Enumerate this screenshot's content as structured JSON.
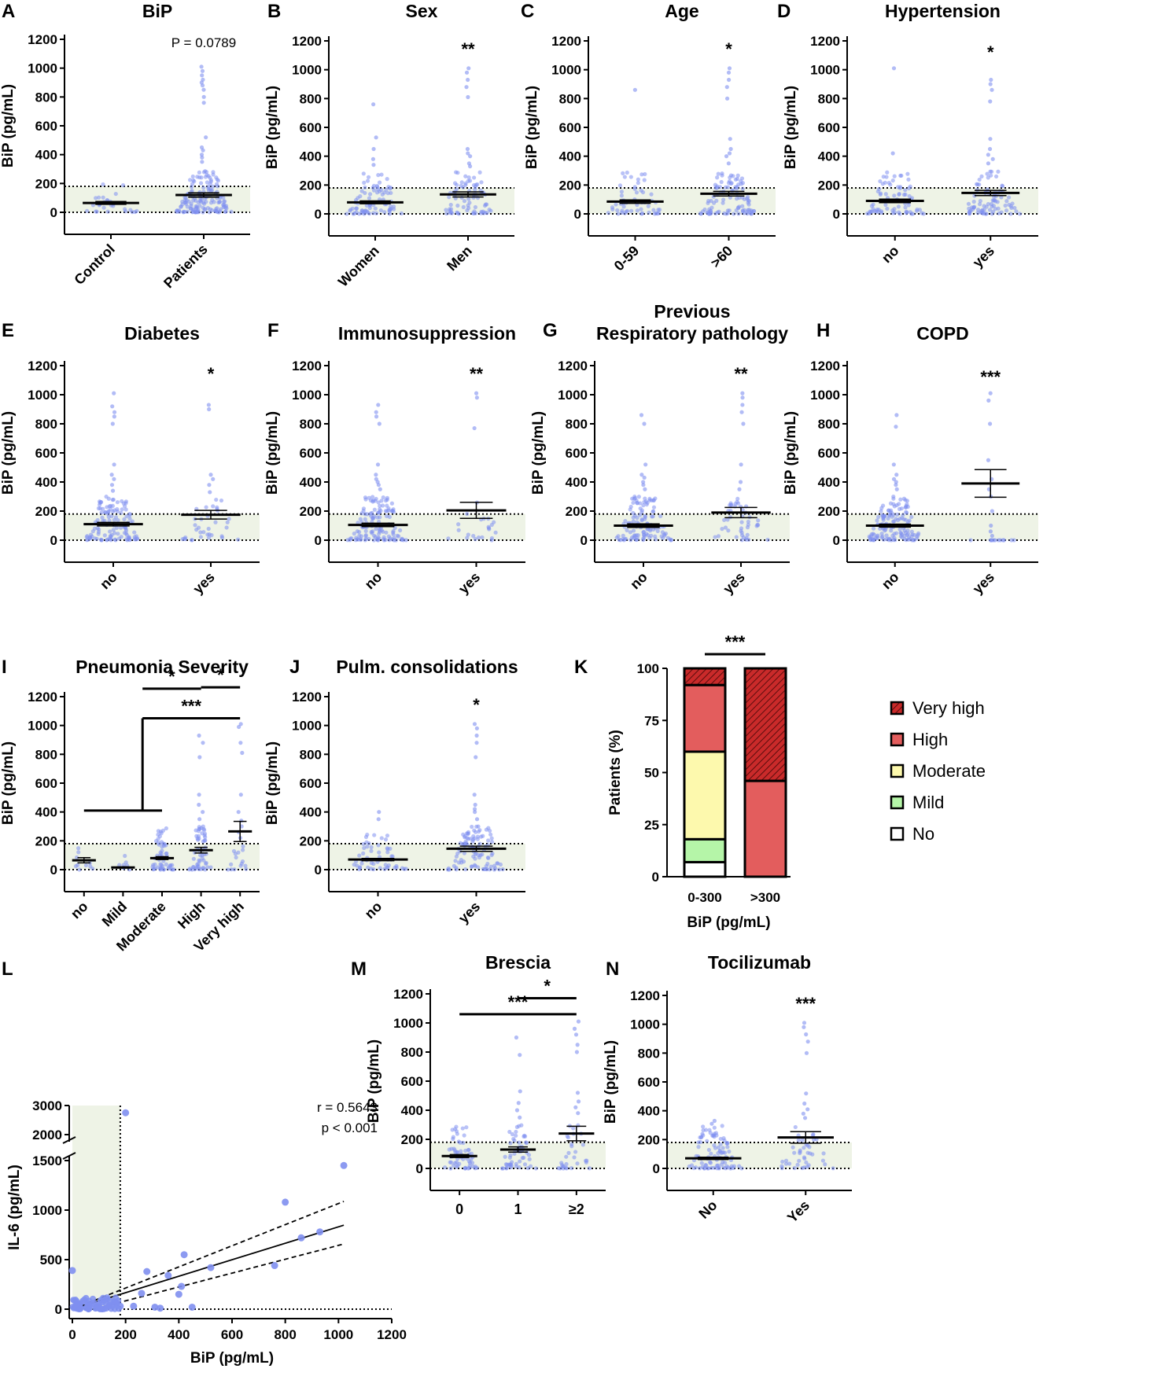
{
  "figure": {
    "background": "#ffffff"
  },
  "colors": {
    "point": "#7f8ff0",
    "band": "#eef3e6",
    "axis": "#000000",
    "very_high": "#c92a2a",
    "high": "#e35d5d",
    "moderate": "#fdf9ad",
    "mild": "#b5f5a8",
    "no": "#ffffff"
  },
  "chart_data": [
    {
      "id": "A",
      "letter": "A",
      "type": "scatter",
      "title": "BiP",
      "ylabel": "BiP (pg/mL)",
      "ylim": [
        0,
        1200
      ],
      "yticks": [
        0,
        200,
        400,
        600,
        800,
        1000,
        1200
      ],
      "normal_range": [
        0,
        180
      ],
      "categories": [
        "Control",
        "Patients"
      ],
      "rotate": true,
      "annotation": "P = 0.0789",
      "annotation_category": 1,
      "series": [
        {
          "name": "Control",
          "mean": 65,
          "sem": 10,
          "n": 28,
          "max": 210,
          "outliers": []
        },
        {
          "name": "Patients",
          "mean": 120,
          "sem": 15,
          "n": 150,
          "max": 300,
          "outliers": [
            1010,
            980,
            950,
            920,
            900,
            880,
            850,
            800,
            760,
            520,
            450,
            430,
            400,
            380,
            350
          ]
        }
      ]
    },
    {
      "id": "B",
      "letter": "B",
      "type": "scatter",
      "title": "Sex",
      "ylabel": "BiP (pg/mL)",
      "ylim": [
        0,
        1200
      ],
      "yticks": [
        0,
        200,
        400,
        600,
        800,
        1000,
        1200
      ],
      "normal_range": [
        0,
        180
      ],
      "categories": [
        "Women",
        "Men"
      ],
      "rotate": true,
      "star": "**",
      "series": [
        {
          "name": "Women",
          "mean": 80,
          "sem": 10,
          "n": 85,
          "max": 280,
          "outliers": [
            760,
            530,
            450,
            380,
            340
          ]
        },
        {
          "name": "Men",
          "mean": 135,
          "sem": 18,
          "n": 75,
          "max": 300,
          "outliers": [
            1010,
            980,
            930,
            880,
            810,
            450,
            420,
            400,
            350,
            330
          ]
        }
      ]
    },
    {
      "id": "C",
      "letter": "C",
      "type": "scatter",
      "title": "Age",
      "ylabel": "BiP (pg/mL)",
      "ylim": [
        0,
        1200
      ],
      "yticks": [
        0,
        200,
        400,
        600,
        800,
        1000,
        1200
      ],
      "normal_range": [
        0,
        180
      ],
      "categories": [
        "0-59",
        ">60"
      ],
      "rotate": true,
      "star": "*",
      "series": [
        {
          "name": "0-59",
          "mean": 85,
          "sem": 12,
          "n": 55,
          "max": 300,
          "outliers": [
            860
          ]
        },
        {
          "name": ">60",
          "mean": 140,
          "sem": 16,
          "n": 100,
          "max": 300,
          "outliers": [
            1010,
            980,
            930,
            880,
            800,
            520,
            450,
            420,
            400,
            350
          ]
        }
      ]
    },
    {
      "id": "D",
      "letter": "D",
      "type": "scatter",
      "title": "Hypertension",
      "ylabel": "BiP (pg/mL)",
      "ylim": [
        0,
        1200
      ],
      "yticks": [
        0,
        200,
        400,
        600,
        800,
        1000,
        1200
      ],
      "normal_range": [
        0,
        180
      ],
      "categories": [
        "no",
        "yes"
      ],
      "rotate": true,
      "star": "*",
      "series": [
        {
          "name": "no",
          "mean": 90,
          "sem": 12,
          "n": 75,
          "max": 300,
          "outliers": [
            1010,
            420
          ]
        },
        {
          "name": "yes",
          "mean": 145,
          "sem": 18,
          "n": 85,
          "max": 300,
          "outliers": [
            930,
            900,
            860,
            780,
            520,
            450,
            410,
            380,
            350
          ]
        }
      ]
    },
    {
      "id": "E",
      "letter": "E",
      "type": "scatter",
      "title": "Diabetes",
      "ylabel": "BiP (pg/mL)",
      "ylim": [
        0,
        1200
      ],
      "yticks": [
        0,
        200,
        400,
        600,
        800,
        1000,
        1200
      ],
      "normal_range": [
        0,
        180
      ],
      "categories": [
        "no",
        "yes"
      ],
      "rotate": true,
      "star": "*",
      "series": [
        {
          "name": "no",
          "mean": 110,
          "sem": 12,
          "n": 120,
          "max": 300,
          "outliers": [
            1010,
            920,
            880,
            850,
            800,
            520,
            450,
            420,
            380,
            340
          ]
        },
        {
          "name": "yes",
          "mean": 175,
          "sem": 30,
          "n": 35,
          "max": 300,
          "outliers": [
            930,
            900,
            450,
            420,
            380,
            330
          ]
        }
      ]
    },
    {
      "id": "F",
      "letter": "F",
      "type": "scatter",
      "title": "Immunosuppression",
      "ylabel": "BiP (pg/mL)",
      "ylim": [
        0,
        1200
      ],
      "yticks": [
        0,
        200,
        400,
        600,
        800,
        1000,
        1200
      ],
      "normal_range": [
        0,
        180
      ],
      "categories": [
        "no",
        "yes"
      ],
      "rotate": true,
      "star": "**",
      "series": [
        {
          "name": "no",
          "mean": 105,
          "sem": 12,
          "n": 130,
          "max": 300,
          "outliers": [
            930,
            880,
            850,
            800,
            520,
            450,
            420,
            400,
            380,
            350
          ]
        },
        {
          "name": "yes",
          "mean": 205,
          "sem": 55,
          "n": 22,
          "max": 260,
          "outliers": [
            1010,
            980,
            770
          ]
        }
      ]
    },
    {
      "id": "G",
      "letter": "G",
      "type": "scatter",
      "title": "Respiratory pathology",
      "title_pre": "Previous",
      "ylabel": "BiP (pg/mL)",
      "ylim": [
        0,
        1200
      ],
      "yticks": [
        0,
        200,
        400,
        600,
        800,
        1000,
        1200
      ],
      "normal_range": [
        0,
        180
      ],
      "categories": [
        "no",
        "yes"
      ],
      "rotate": true,
      "star": "**",
      "series": [
        {
          "name": "no",
          "mean": 100,
          "sem": 12,
          "n": 115,
          "max": 300,
          "outliers": [
            860,
            800,
            520,
            450,
            430,
            400,
            380,
            350
          ]
        },
        {
          "name": "yes",
          "mean": 190,
          "sem": 35,
          "n": 45,
          "max": 300,
          "outliers": [
            1010,
            980,
            930,
            880,
            800,
            520,
            400,
            350
          ]
        }
      ]
    },
    {
      "id": "H",
      "letter": "H",
      "type": "scatter",
      "title": "COPD",
      "ylabel": "BiP (pg/mL)",
      "ylim": [
        0,
        1200
      ],
      "yticks": [
        0,
        200,
        400,
        600,
        800,
        1000,
        1200
      ],
      "normal_range": [
        0,
        180
      ],
      "categories": [
        "no",
        "yes"
      ],
      "rotate": true,
      "star": "***",
      "series": [
        {
          "name": "no",
          "mean": 100,
          "sem": 10,
          "n": 140,
          "max": 300,
          "outliers": [
            860,
            780,
            520,
            450,
            420,
            400,
            380,
            350
          ]
        },
        {
          "name": "yes",
          "mean": 390,
          "sem": 95,
          "n": 12,
          "max": 0,
          "outliers": [
            1010,
            960,
            800,
            550,
            420,
            350,
            300,
            200,
            100,
            60,
            30
          ]
        }
      ]
    },
    {
      "id": "I",
      "letter": "I",
      "type": "scatter",
      "title": "Pneumonia Severity",
      "ylabel": "BiP (pg/mL)",
      "ylim": [
        0,
        1200
      ],
      "yticks": [
        0,
        200,
        400,
        600,
        800,
        1000,
        1200
      ],
      "normal_range": [
        0,
        180
      ],
      "categories": [
        "no",
        "Mild",
        "Moderate",
        "High",
        "Very high"
      ],
      "rotate": true,
      "series": [
        {
          "name": "no",
          "mean": 65,
          "sem": 18,
          "n": 10,
          "max": 210,
          "outliers": []
        },
        {
          "name": "Mild",
          "mean": 15,
          "sem": 4,
          "n": 8,
          "max": 100,
          "outliers": []
        },
        {
          "name": "Moderate",
          "mean": 80,
          "sem": 10,
          "n": 55,
          "max": 300,
          "outliers": []
        },
        {
          "name": "High",
          "mean": 135,
          "sem": 20,
          "n": 55,
          "max": 300,
          "outliers": [
            930,
            880,
            780,
            520,
            450,
            400,
            350
          ]
        },
        {
          "name": "Very high",
          "mean": 265,
          "sem": 70,
          "n": 15,
          "max": 200,
          "outliers": [
            1010,
            990,
            880,
            810,
            520,
            400,
            340,
            300,
            260,
            220
          ]
        }
      ],
      "comparisons": [
        {
          "label": "*",
          "from": 1.5,
          "to": 3,
          "y": 1255
        },
        {
          "label": "*",
          "from": 3,
          "to": 4,
          "y": 1265
        },
        {
          "label": "***",
          "from": 1.5,
          "to": 4,
          "y": 1050,
          "group": [
            0,
            2
          ],
          "group_y": 410
        }
      ]
    },
    {
      "id": "J",
      "letter": "J",
      "type": "scatter",
      "title": "Pulm. consolidations",
      "ylabel": "BiP (pg/mL)",
      "ylim": [
        0,
        1200
      ],
      "yticks": [
        0,
        200,
        400,
        600,
        800,
        1000,
        1200
      ],
      "normal_range": [
        0,
        180
      ],
      "categories": [
        "no",
        "yes"
      ],
      "rotate": true,
      "star": "*",
      "series": [
        {
          "name": "no",
          "mean": 70,
          "sem": 8,
          "n": 55,
          "max": 250,
          "outliers": [
            400,
            350
          ]
        },
        {
          "name": "yes",
          "mean": 145,
          "sem": 18,
          "n": 100,
          "max": 300,
          "outliers": [
            1010,
            980,
            930,
            880,
            780,
            520,
            450,
            420,
            400,
            350
          ]
        }
      ]
    },
    {
      "id": "K",
      "letter": "K",
      "type": "stacked_bar",
      "ylabel": "Patients (%)",
      "xlabel": "BiP (pg/mL)",
      "ylim": [
        0,
        100
      ],
      "yticks": [
        0,
        25,
        50,
        75,
        100
      ],
      "categories": [
        "0-300",
        ">300"
      ],
      "star": "***",
      "series": [
        {
          "name": "No",
          "values": [
            7,
            0
          ],
          "color": "#ffffff"
        },
        {
          "name": "Mild",
          "values": [
            11,
            0
          ],
          "color": "#b5f5a8"
        },
        {
          "name": "Moderate",
          "values": [
            42,
            0
          ],
          "color": "#fdf9ad"
        },
        {
          "name": "High",
          "values": [
            32,
            46
          ],
          "color": "#e35d5d"
        },
        {
          "name": "Very high",
          "values": [
            8,
            54
          ],
          "color": "#c92a2a",
          "hatched": true
        }
      ],
      "legend_order": [
        "Very high",
        "High",
        "Moderate",
        "Mild",
        "No"
      ]
    },
    {
      "id": "L",
      "letter": "L",
      "type": "scatter_regression",
      "ylabel": "IL-6 (pg/mL)",
      "xlabel": "BiP (pg/mL)",
      "xlim": [
        0,
        1200
      ],
      "xticks": [
        0,
        200,
        400,
        600,
        800,
        1000,
        1200
      ],
      "yticks": [
        0,
        500,
        1000,
        1500,
        2000,
        3000
      ],
      "y_break": [
        1500,
        2000
      ],
      "r_text": "r = 0.5643",
      "p_text": "p < 0.001",
      "regression": {
        "slope": 0.89,
        "intercept": -60
      },
      "points": [
        [
          0,
          390
        ],
        [
          10,
          20
        ],
        [
          20,
          50
        ],
        [
          30,
          10
        ],
        [
          40,
          80
        ],
        [
          60,
          30
        ],
        [
          80,
          60
        ],
        [
          100,
          20
        ],
        [
          120,
          90
        ],
        [
          140,
          40
        ],
        [
          160,
          70
        ],
        [
          180,
          30
        ],
        [
          200,
          2750
        ],
        [
          230,
          30
        ],
        [
          260,
          160
        ],
        [
          280,
          380
        ],
        [
          310,
          20
        ],
        [
          330,
          10
        ],
        [
          360,
          340
        ],
        [
          400,
          150
        ],
        [
          410,
          230
        ],
        [
          420,
          550
        ],
        [
          450,
          20
        ],
        [
          520,
          420
        ],
        [
          760,
          440
        ],
        [
          800,
          1080
        ],
        [
          860,
          720
        ],
        [
          930,
          780
        ],
        [
          1020,
          1450
        ]
      ],
      "normal_range_x": [
        0,
        180
      ]
    },
    {
      "id": "M",
      "letter": "M",
      "type": "scatter",
      "title": "Brescia",
      "ylabel": "BiP (pg/mL)",
      "ylim": [
        0,
        1200
      ],
      "yticks": [
        0,
        200,
        400,
        600,
        800,
        1000,
        1200
      ],
      "normal_range": [
        0,
        180
      ],
      "categories": [
        "0",
        "1",
        "≥2"
      ],
      "rotate": false,
      "series": [
        {
          "name": "0",
          "mean": 85,
          "sem": 10,
          "n": 60,
          "max": 290,
          "outliers": []
        },
        {
          "name": "1",
          "mean": 130,
          "sem": 18,
          "n": 55,
          "max": 300,
          "outliers": [
            900,
            780,
            530,
            450,
            400,
            350
          ]
        },
        {
          "name": "≥2",
          "mean": 240,
          "sem": 50,
          "n": 30,
          "max": 300,
          "outliers": [
            1010,
            960,
            920,
            850,
            800,
            520,
            460,
            420,
            380
          ]
        }
      ],
      "comparisons": [
        {
          "label": "*",
          "from": 1,
          "to": 2,
          "y": 1170
        },
        {
          "label": "***",
          "from": 0,
          "to": 2,
          "y": 1060
        }
      ]
    },
    {
      "id": "N",
      "letter": "N",
      "type": "scatter",
      "title": "Tocilizumab",
      "ylabel": "BiP (pg/mL)",
      "ylim": [
        0,
        1200
      ],
      "yticks": [
        0,
        200,
        400,
        600,
        800,
        1000,
        1200
      ],
      "normal_range": [
        0,
        180
      ],
      "categories": [
        "No",
        "Yes"
      ],
      "rotate": true,
      "star": "***",
      "series": [
        {
          "name": "No",
          "mean": 70,
          "sem": 8,
          "n": 95,
          "max": 300,
          "outliers": [
            330,
            310
          ]
        },
        {
          "name": "Yes",
          "mean": 215,
          "sem": 40,
          "n": 40,
          "max": 300,
          "outliers": [
            1010,
            980,
            930,
            880,
            800,
            520,
            450,
            410,
            380,
            350
          ]
        }
      ]
    }
  ]
}
